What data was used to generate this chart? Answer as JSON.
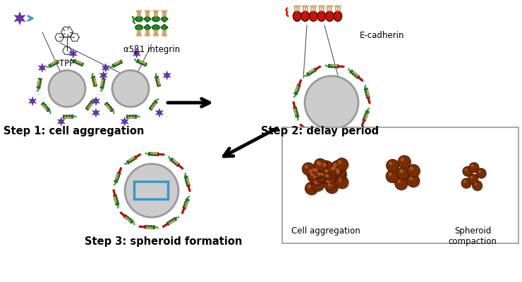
{
  "background_color": "#ffffff",
  "step1_label": "Step 1: cell aggregation",
  "step2_label": "Step 2: delay period",
  "step3_label": "Step 3: spheroid formation",
  "cell_aggregation_label": "Cell aggregation",
  "spheroid_compaction_label": "Spheroid\ncompaction",
  "tpp_label": "TPP",
  "integrin_label": "α5β1 integrin",
  "ecadherin_label": "E-cadherin",
  "cell_color": "#cccccc",
  "cell_edge": "#999999",
  "tpp_color": "#6633aa",
  "integrin_green": "#228B22",
  "integrin_tan": "#C8A060",
  "ecadherin_red": "#CC1100",
  "sphere_brown": "#7A2E00",
  "sphere_highlight": "#B05020",
  "arrow_color": "#111111",
  "box_outline": "#3399CC",
  "label_fontsize": 10.5,
  "small_fontsize": 8.5
}
